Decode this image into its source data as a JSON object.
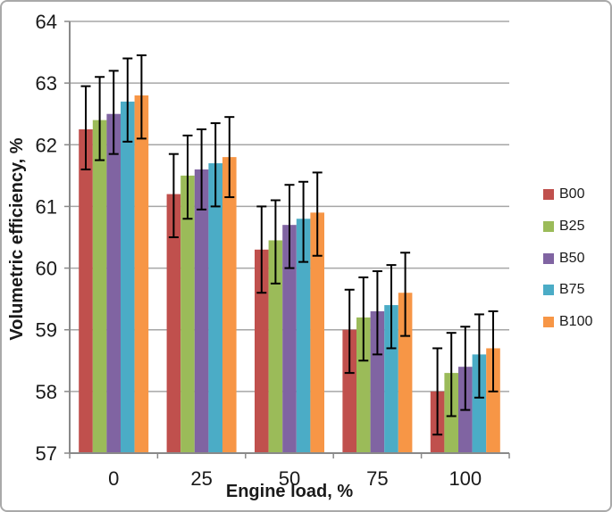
{
  "figure": {
    "background": "#ffffff",
    "border_color": "#a9a9a9"
  },
  "chart_data": {
    "type": "bar",
    "title": "",
    "xlabel": "Engine load, %",
    "ylabel": "Volumetric efficiency, %",
    "categories": [
      "0",
      "25",
      "50",
      "75",
      "100"
    ],
    "y_ticks": [
      57,
      58,
      59,
      60,
      61,
      62,
      63,
      64
    ],
    "ylim": [
      57,
      64
    ],
    "grid": "horizontal",
    "legend_position": "right",
    "gridline_color": "#a6a6a6",
    "axis_color": "#898989",
    "error_bar_color": "#000000",
    "series": [
      {
        "name": "B00",
        "color": "#C0504D",
        "values": [
          62.25,
          61.2,
          60.3,
          59.0,
          58.0
        ],
        "error_low": [
          61.6,
          60.5,
          59.6,
          58.3,
          57.3
        ],
        "error_high": [
          62.95,
          61.85,
          61.0,
          59.65,
          58.7
        ]
      },
      {
        "name": "B25",
        "color": "#9BBB59",
        "values": [
          62.4,
          61.5,
          60.45,
          59.2,
          58.3
        ],
        "error_low": [
          61.75,
          60.8,
          59.75,
          58.5,
          57.6
        ],
        "error_high": [
          63.1,
          62.15,
          61.1,
          59.85,
          58.95
        ]
      },
      {
        "name": "B50",
        "color": "#8064A2",
        "values": [
          62.5,
          61.6,
          60.7,
          59.3,
          58.4
        ],
        "error_low": [
          61.85,
          60.95,
          60.0,
          58.6,
          57.7
        ],
        "error_high": [
          63.2,
          62.25,
          61.35,
          59.95,
          59.05
        ]
      },
      {
        "name": "B75",
        "color": "#4BACC6",
        "values": [
          62.7,
          61.7,
          60.8,
          59.4,
          58.6
        ],
        "error_low": [
          62.05,
          61.0,
          60.1,
          58.7,
          57.9
        ],
        "error_high": [
          63.4,
          62.35,
          61.4,
          60.05,
          59.25
        ]
      },
      {
        "name": "B100",
        "color": "#F79646",
        "values": [
          62.8,
          61.8,
          60.9,
          59.6,
          58.7
        ],
        "error_low": [
          62.1,
          61.15,
          60.2,
          58.9,
          58.0
        ],
        "error_high": [
          63.45,
          62.45,
          61.55,
          60.25,
          59.3
        ]
      }
    ]
  }
}
